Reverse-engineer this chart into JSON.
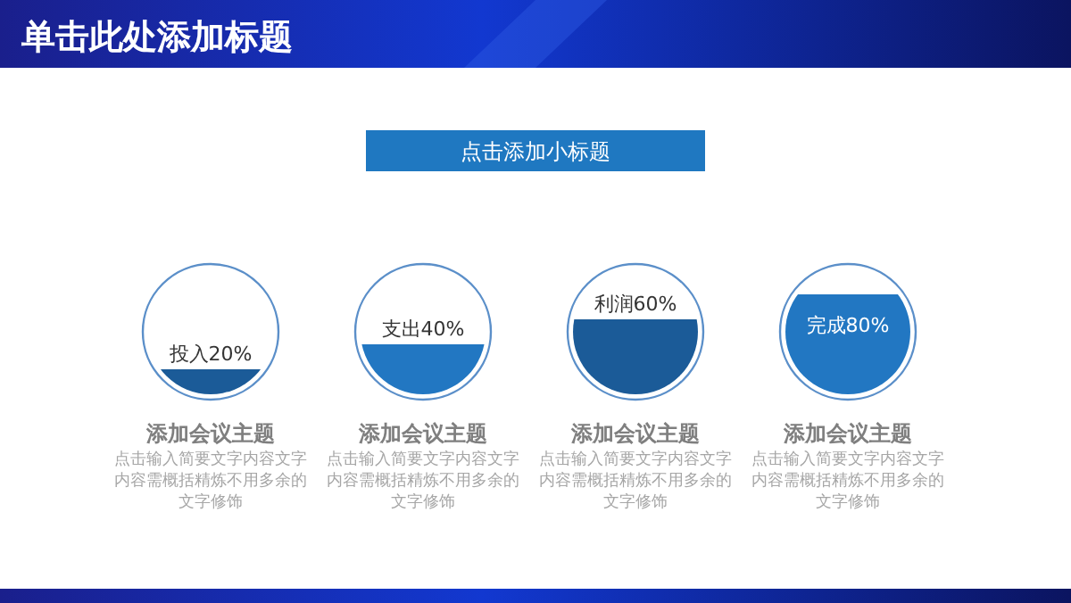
{
  "chart_data": {
    "type": "other",
    "title": "单击此处添加标题",
    "subtitle": "点击添加小标题",
    "categories": [
      "投入",
      "支出",
      "利润",
      "完成"
    ],
    "values": [
      20,
      40,
      60,
      80
    ],
    "value_labels": [
      "20%",
      "40%",
      "60%",
      "80%"
    ],
    "colors": [
      "#1b5b98",
      "#2277c2",
      "#1b5b98",
      "#2277c2"
    ],
    "annotations": [
      "添加会议主题",
      "点击输入简要文字内容文字内容需概括精炼不用多余的文字修饰",
      "添加会议主题",
      "点击输入简要文字内容文字内容需概括精炼不用多余的文字修饰",
      "添加会议主题",
      "点击输入简要文字内容文字内容需概括精炼不用多余的文字修饰",
      "添加会议主题",
      "点击输入简要文字内容文字内容需概括精炼不用多余的文字修饰"
    ]
  }
}
